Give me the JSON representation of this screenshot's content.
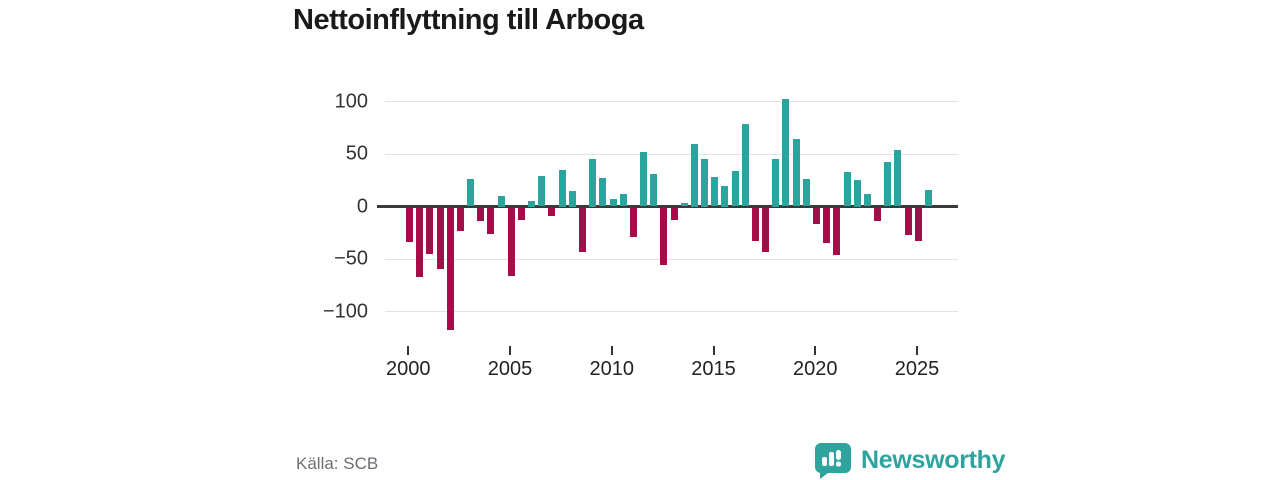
{
  "title": "Nettoinflyttning till Arboga",
  "source": "Källa: SCB",
  "logo": {
    "label": "Newsworthy",
    "color": "#2fa49e"
  },
  "colors": {
    "positive_bar": "#29a59d",
    "negative_bar": "#a30d49",
    "gridline": "#e2e2e2",
    "zero_line": "#3a3a3a",
    "axis_text": "#333333",
    "title_text": "#1a1a1a",
    "source_text": "#6e6e73"
  },
  "chart_data": {
    "type": "bar",
    "title": "Nettoinflyttning till Arboga",
    "xlabel": "",
    "ylabel": "",
    "ylim": [
      -125,
      115
    ],
    "yticks": [
      100,
      50,
      0,
      -50,
      -100
    ],
    "xticks": [
      2000,
      2005,
      2010,
      2015,
      2020,
      2025
    ],
    "grid": true,
    "legend_position": "none",
    "period_type": "half-year",
    "points": [
      {
        "period": "2000 H1",
        "value": -32
      },
      {
        "period": "2000 H2",
        "value": -66
      },
      {
        "period": "2001 H1",
        "value": -44
      },
      {
        "period": "2001 H2",
        "value": -58
      },
      {
        "period": "2002 H1",
        "value": -116
      },
      {
        "period": "2002 H2",
        "value": -22
      },
      {
        "period": "2003 H1",
        "value": 26
      },
      {
        "period": "2003 H2",
        "value": -12
      },
      {
        "period": "2004 H1",
        "value": -25
      },
      {
        "period": "2004 H2",
        "value": 10
      },
      {
        "period": "2005 H1",
        "value": -65
      },
      {
        "period": "2005 H2",
        "value": -11
      },
      {
        "period": "2006 H1",
        "value": 5
      },
      {
        "period": "2006 H2",
        "value": 29
      },
      {
        "period": "2007 H1",
        "value": -8
      },
      {
        "period": "2007 H2",
        "value": 35
      },
      {
        "period": "2008 H1",
        "value": 15
      },
      {
        "period": "2008 H2",
        "value": -42
      },
      {
        "period": "2009 H1",
        "value": 45
      },
      {
        "period": "2009 H2",
        "value": 27
      },
      {
        "period": "2010 H1",
        "value": 7
      },
      {
        "period": "2010 H2",
        "value": 12
      },
      {
        "period": "2011 H1",
        "value": -28
      },
      {
        "period": "2011 H2",
        "value": 52
      },
      {
        "period": "2012 H1",
        "value": 31
      },
      {
        "period": "2012 H2",
        "value": -54
      },
      {
        "period": "2013 H1",
        "value": -11
      },
      {
        "period": "2013 H2",
        "value": 3
      },
      {
        "period": "2014 H1",
        "value": 60
      },
      {
        "period": "2014 H2",
        "value": 45
      },
      {
        "period": "2015 H1",
        "value": 28
      },
      {
        "period": "2015 H2",
        "value": 20
      },
      {
        "period": "2016 H1",
        "value": 34
      },
      {
        "period": "2016 H2",
        "value": 79
      },
      {
        "period": "2017 H1",
        "value": -31
      },
      {
        "period": "2017 H2",
        "value": -42
      },
      {
        "period": "2018 H1",
        "value": 45
      },
      {
        "period": "2018 H2",
        "value": 102
      },
      {
        "period": "2019 H1",
        "value": 64
      },
      {
        "period": "2019 H2",
        "value": 26
      },
      {
        "period": "2020 H1",
        "value": -15
      },
      {
        "period": "2020 H2",
        "value": -33
      },
      {
        "period": "2021 H1",
        "value": -45
      },
      {
        "period": "2021 H2",
        "value": 33
      },
      {
        "period": "2022 H1",
        "value": 25
      },
      {
        "period": "2022 H2",
        "value": 12
      },
      {
        "period": "2023 H1",
        "value": -12
      },
      {
        "period": "2023 H2",
        "value": 42
      },
      {
        "period": "2024 H1",
        "value": 54
      },
      {
        "period": "2024 H2",
        "value": -26
      },
      {
        "period": "2025 H1",
        "value": -31
      },
      {
        "period": "2025 H2",
        "value": 16
      }
    ]
  }
}
